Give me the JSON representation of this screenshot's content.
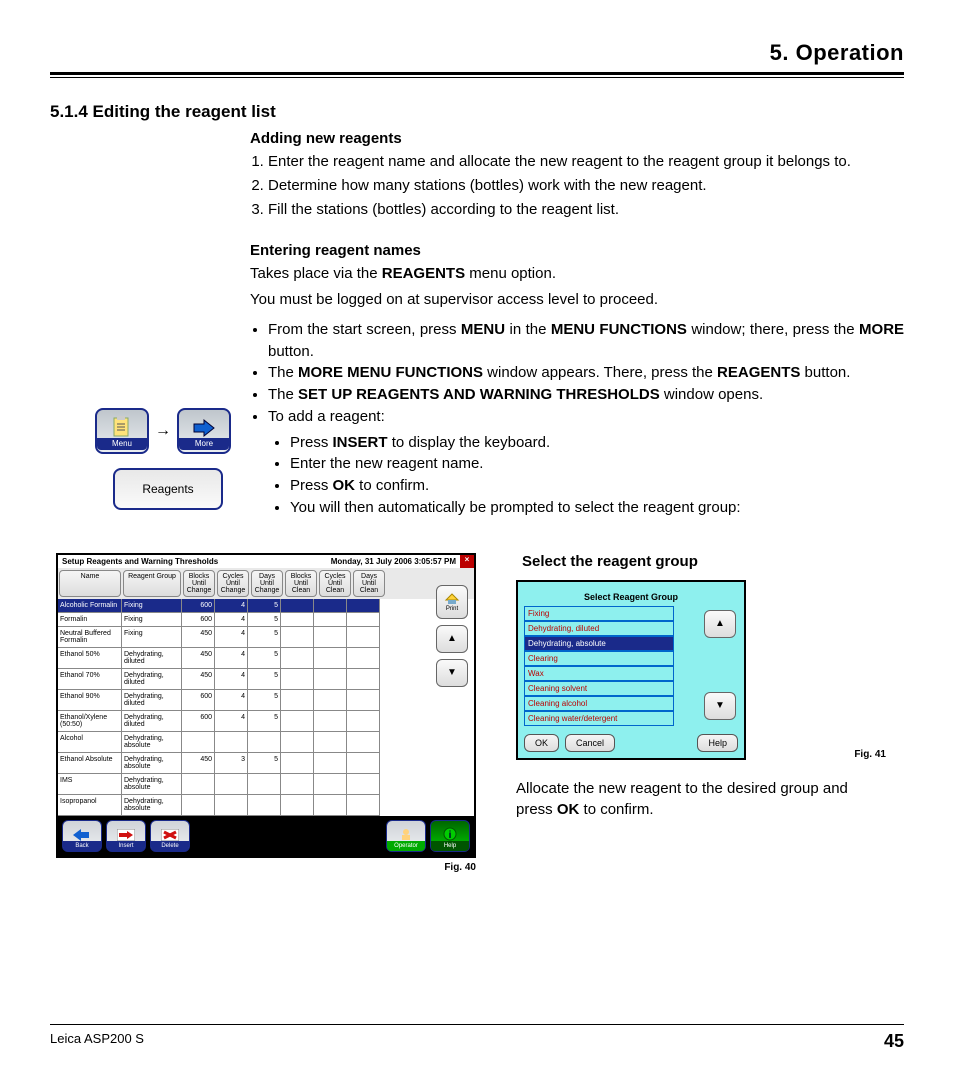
{
  "chapter": "5.    Operation",
  "section_title": "5.1.4 Editing the reagent list",
  "sub1": "Adding new reagents",
  "add_steps": [
    "Enter the reagent name and allocate the new reagent to the reagent group it belongs to.",
    "Determine how many stations (bottles) work with the new reagent.",
    "Fill the stations (bottles) according to the reagent list."
  ],
  "sub2": "Entering reagent names",
  "line_takes": "Takes place via the ",
  "kw_reagents": "REAGENTS",
  "line_takes2": " menu option.",
  "line_logged": "You must be logged on at supervisor access level to proceed.",
  "b1a": "From the start screen, press ",
  "kw_menu": "MENU",
  "b1b": " in the ",
  "kw_menufn": "MENU FUNCTIONS",
  "b1c": " window; there, press the ",
  "kw_more": "MORE",
  "b1d": " button.",
  "b2a": "The ",
  "kw_moremenu": "MORE MENU FUNCTIONS",
  "b2b": " window appears. There, press the ",
  "b2c": " button.",
  "b3a": "The ",
  "kw_setup": "SET UP REAGENTS AND WARNING THRESHOLDS",
  "b3b": " window opens.",
  "b4": "To add a reagent:",
  "b4_1a": "Press ",
  "kw_insert": "INSERT",
  "b4_1b": " to display the keyboard.",
  "b4_2": "Enter the new reagent name.",
  "b4_3a": "Press ",
  "kw_ok": "OK",
  "b4_3b": " to confirm.",
  "b4_4": "You will then automatically be prompted to select the reagent group:",
  "btn_menu": "Menu",
  "btn_more": "More",
  "btn_reagents": "Reagents",
  "btn_insert": "Insert",
  "fig40": {
    "title": "Setup Reagents and Warning Thresholds",
    "timestamp": "Monday, 31 July 2006 3:05:57 PM",
    "headers": [
      "Name",
      "Reagent Group",
      "Blocks Until Change",
      "Cycles Until Change",
      "Days Until Change",
      "Blocks Until Clean",
      "Cycles Until Clean",
      "Days Until Clean"
    ],
    "rows": [
      {
        "sel": true,
        "name": "Alcoholic Formalin",
        "group": "Fixing",
        "v": [
          "600",
          "4",
          "5",
          "",
          "",
          ""
        ]
      },
      {
        "sel": false,
        "name": "Formalin",
        "group": "Fixing",
        "v": [
          "600",
          "4",
          "5",
          "",
          "",
          ""
        ]
      },
      {
        "sel": false,
        "name": "Neutral Buffered Formalin",
        "group": "Fixing",
        "v": [
          "450",
          "4",
          "5",
          "",
          "",
          ""
        ]
      },
      {
        "sel": false,
        "name": "Ethanol 50%",
        "group": "Dehydrating, diluted",
        "v": [
          "450",
          "4",
          "5",
          "",
          "",
          ""
        ]
      },
      {
        "sel": false,
        "name": "Ethanol 70%",
        "group": "Dehydrating, diluted",
        "v": [
          "450",
          "4",
          "5",
          "",
          "",
          ""
        ]
      },
      {
        "sel": false,
        "name": "Ethanol 90%",
        "group": "Dehydrating, diluted",
        "v": [
          "600",
          "4",
          "5",
          "",
          "",
          ""
        ]
      },
      {
        "sel": false,
        "name": "Ethanol/Xylene (50:50)",
        "group": "Dehydrating, diluted",
        "v": [
          "600",
          "4",
          "5",
          "",
          "",
          ""
        ]
      },
      {
        "sel": false,
        "name": "Alcohol",
        "group": "Dehydrating, absolute",
        "v": [
          "",
          "",
          "",
          "",
          "",
          ""
        ]
      },
      {
        "sel": false,
        "name": "Ethanol Absolute",
        "group": "Dehydrating, absolute",
        "v": [
          "450",
          "3",
          "5",
          "",
          "",
          ""
        ]
      },
      {
        "sel": false,
        "name": "IMS",
        "group": "Dehydrating, absolute",
        "v": [
          "",
          "",
          "",
          "",
          "",
          ""
        ]
      },
      {
        "sel": false,
        "name": "Isopropanol",
        "group": "Dehydrating, absolute",
        "v": [
          "",
          "",
          "",
          "",
          "",
          ""
        ]
      }
    ],
    "footer": [
      "Back",
      "Insert",
      "Delete",
      "Operator",
      "Help"
    ],
    "print": "Print",
    "caption": "Fig. 40"
  },
  "fig41": {
    "heading": "Select the reagent group",
    "title": "Select Reagent Group",
    "items": [
      {
        "t": "Fixing",
        "sel": false
      },
      {
        "t": "Dehydrating, diluted",
        "sel": false
      },
      {
        "t": "Dehydrating, absolute",
        "sel": true
      },
      {
        "t": "Clearing",
        "sel": false
      },
      {
        "t": "Wax",
        "sel": false
      },
      {
        "t": "Cleaning solvent",
        "sel": false
      },
      {
        "t": "Cleaning alcohol",
        "sel": false
      },
      {
        "t": "Cleaning water/detergent",
        "sel": false
      }
    ],
    "ok": "OK",
    "cancel": "Cancel",
    "help": "Help",
    "caption": "Fig. 41"
  },
  "after41a": "Allocate the new reagent to the desired group and press ",
  "after41b": " to confirm.",
  "footer_product": "Leica ASP200 S",
  "footer_page": "45"
}
